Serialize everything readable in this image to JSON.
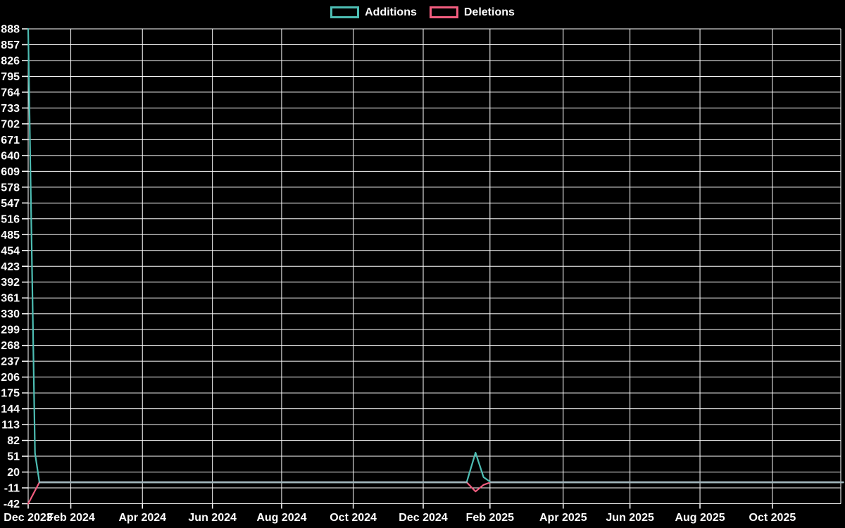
{
  "chart_data": {
    "type": "line",
    "title": "",
    "background": "#000000",
    "text_color": "#ffffff",
    "grid_color": "#ffffff",
    "grid": true,
    "legend": {
      "position": "top",
      "items": [
        {
          "label": "Additions",
          "color": "#4dbdb3"
        },
        {
          "label": "Deletions",
          "color": "#f25d7f"
        }
      ]
    },
    "y_axis": {
      "min": -42,
      "max": 888,
      "tick_step": 31,
      "tick_labels": [
        "888",
        "857",
        "826",
        "795",
        "764",
        "733",
        "702",
        "671",
        "640",
        "609",
        "578",
        "547",
        "516",
        "485",
        "454",
        "423",
        "392",
        "361",
        "330",
        "299",
        "268",
        "237",
        "206",
        "175",
        "144",
        "113",
        "82",
        "51",
        "20",
        "-11",
        "-42"
      ]
    },
    "x_axis": {
      "unit": "weeks-since-start",
      "total_weeks": 101,
      "ticks": [
        {
          "label": "Dec 2023",
          "w": 0
        },
        {
          "label": "Feb 2024",
          "w": 5.3
        },
        {
          "label": "Apr 2024",
          "w": 14.2
        },
        {
          "label": "Jun 2024",
          "w": 22.9
        },
        {
          "label": "Aug 2024",
          "w": 31.5
        },
        {
          "label": "Oct 2024",
          "w": 40.4
        },
        {
          "label": "Dec 2024",
          "w": 49.1
        },
        {
          "label": "Feb 2025",
          "w": 57.4
        },
        {
          "label": "Apr 2025",
          "w": 66.5
        },
        {
          "label": "Jun 2025",
          "w": 74.8
        },
        {
          "label": "Aug 2025",
          "w": 83.5
        },
        {
          "label": "Oct 2025",
          "w": 92.5
        }
      ],
      "right_edge_line": true
    },
    "series": [
      {
        "name": "Additions",
        "color": "#4dbdb3",
        "points": [
          [
            0,
            888
          ],
          [
            0.85,
            57
          ],
          [
            1.4,
            0
          ],
          [
            54.5,
            0
          ],
          [
            55.6,
            58
          ],
          [
            56.6,
            10
          ],
          [
            57.5,
            0
          ],
          [
            101,
            0
          ]
        ]
      },
      {
        "name": "Deletions",
        "color": "#f25d7f",
        "points": [
          [
            0,
            -42
          ],
          [
            1.4,
            0
          ],
          [
            54.5,
            0
          ],
          [
            55.6,
            -18
          ],
          [
            56.6,
            -5
          ],
          [
            57.5,
            0
          ],
          [
            101,
            0
          ]
        ]
      }
    ],
    "overlap_zero_color": "#9fb4ba",
    "overlap_zero_segments": [
      [
        1.4,
        54.5
      ],
      [
        57.5,
        101.3
      ]
    ]
  }
}
